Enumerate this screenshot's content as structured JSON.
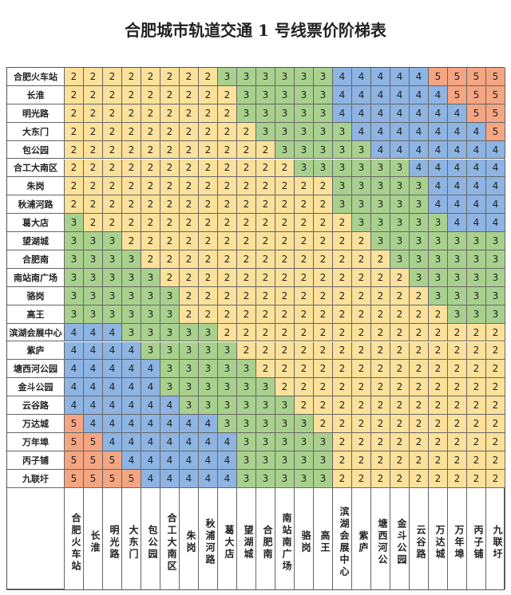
{
  "title": "合肥城市轨道交通 1 号线票价阶梯表",
  "stations": [
    "合肥火车站",
    "长淮",
    "明光路",
    "大东门",
    "包公园",
    "合工大南区",
    "朱岗",
    "秋浦河路",
    "葛大店",
    "望湖城",
    "合肥南",
    "南站南广场",
    "骆岗",
    "高王",
    "滨湖会展中心",
    "紫庐",
    "塘西河公园",
    "金斗公园",
    "云谷路",
    "万达城",
    "万年埠",
    "丙子铺",
    "九联圩"
  ],
  "columns": [
    "合肥火车站",
    "长淮",
    "明光路",
    "大东门",
    "包公园",
    "合工大南区",
    "朱岗",
    "秋浦河路",
    "葛大店",
    "望湖城",
    "合肥南",
    "南站南广场",
    "骆岗",
    "高王",
    "滨湖会展中心",
    "紫庐",
    "塘西河公",
    "金斗公园",
    "云谷路",
    "万达城",
    "万年埠",
    "丙子铺",
    "九联圩"
  ],
  "fare_colors": {
    "2": "#fbe19a",
    "3": "#a9d18e",
    "4": "#8db4e2",
    "5": "#f4a582"
  },
  "fares": [
    [
      2,
      2,
      2,
      2,
      2,
      2,
      2,
      2,
      3,
      3,
      3,
      3,
      3,
      3,
      4,
      4,
      4,
      4,
      4,
      5,
      5,
      5,
      5
    ],
    [
      2,
      2,
      2,
      2,
      2,
      2,
      2,
      2,
      2,
      3,
      3,
      3,
      3,
      3,
      4,
      4,
      4,
      4,
      4,
      4,
      5,
      5,
      5
    ],
    [
      2,
      2,
      2,
      2,
      2,
      2,
      2,
      2,
      2,
      3,
      3,
      3,
      3,
      3,
      4,
      4,
      4,
      4,
      4,
      4,
      4,
      5,
      5
    ],
    [
      2,
      2,
      2,
      2,
      2,
      2,
      2,
      2,
      2,
      2,
      3,
      3,
      3,
      3,
      3,
      4,
      4,
      4,
      4,
      4,
      4,
      4,
      5
    ],
    [
      2,
      2,
      2,
      2,
      2,
      2,
      2,
      2,
      2,
      2,
      2,
      3,
      3,
      3,
      3,
      3,
      4,
      4,
      4,
      4,
      4,
      4,
      4
    ],
    [
      2,
      2,
      2,
      2,
      2,
      2,
      2,
      2,
      2,
      2,
      2,
      2,
      3,
      3,
      3,
      3,
      3,
      3,
      4,
      4,
      4,
      4,
      4
    ],
    [
      2,
      2,
      2,
      2,
      2,
      2,
      2,
      2,
      2,
      2,
      2,
      2,
      2,
      2,
      3,
      3,
      3,
      3,
      3,
      4,
      4,
      4,
      4
    ],
    [
      2,
      2,
      2,
      2,
      2,
      2,
      2,
      2,
      2,
      2,
      2,
      2,
      2,
      2,
      3,
      3,
      3,
      3,
      3,
      4,
      4,
      4,
      4
    ],
    [
      3,
      2,
      2,
      2,
      2,
      2,
      2,
      2,
      2,
      2,
      2,
      2,
      2,
      2,
      2,
      3,
      3,
      3,
      3,
      3,
      4,
      4,
      4
    ],
    [
      3,
      3,
      3,
      2,
      2,
      2,
      2,
      2,
      2,
      2,
      2,
      2,
      2,
      2,
      2,
      2,
      3,
      3,
      3,
      3,
      3,
      3,
      3
    ],
    [
      3,
      3,
      3,
      3,
      2,
      2,
      2,
      2,
      2,
      2,
      2,
      2,
      2,
      2,
      2,
      2,
      2,
      3,
      3,
      3,
      3,
      3,
      3
    ],
    [
      3,
      3,
      3,
      3,
      3,
      2,
      2,
      2,
      2,
      2,
      2,
      2,
      2,
      2,
      2,
      2,
      2,
      2,
      3,
      3,
      3,
      3,
      3
    ],
    [
      3,
      3,
      3,
      3,
      3,
      3,
      2,
      2,
      2,
      2,
      2,
      2,
      2,
      2,
      2,
      2,
      2,
      2,
      2,
      3,
      3,
      3,
      3
    ],
    [
      3,
      3,
      3,
      3,
      3,
      3,
      2,
      2,
      2,
      2,
      2,
      2,
      2,
      2,
      2,
      2,
      2,
      2,
      2,
      2,
      3,
      3,
      3
    ],
    [
      4,
      4,
      4,
      3,
      3,
      3,
      3,
      3,
      2,
      2,
      2,
      2,
      2,
      2,
      2,
      2,
      2,
      2,
      2,
      2,
      2,
      2,
      2
    ],
    [
      4,
      4,
      4,
      4,
      3,
      3,
      3,
      3,
      3,
      2,
      2,
      2,
      2,
      2,
      2,
      2,
      2,
      2,
      2,
      2,
      2,
      2,
      2
    ],
    [
      4,
      4,
      4,
      4,
      4,
      3,
      3,
      3,
      3,
      3,
      2,
      2,
      2,
      2,
      2,
      2,
      2,
      2,
      2,
      2,
      2,
      2,
      2
    ],
    [
      4,
      4,
      4,
      4,
      4,
      3,
      3,
      3,
      3,
      3,
      3,
      2,
      2,
      2,
      2,
      2,
      2,
      2,
      2,
      2,
      2,
      2,
      2
    ],
    [
      4,
      4,
      4,
      4,
      4,
      4,
      3,
      3,
      3,
      3,
      3,
      3,
      2,
      2,
      2,
      2,
      2,
      2,
      2,
      2,
      2,
      2,
      2
    ],
    [
      5,
      4,
      4,
      4,
      4,
      4,
      4,
      4,
      3,
      3,
      3,
      3,
      3,
      2,
      2,
      2,
      2,
      2,
      2,
      2,
      2,
      2,
      2
    ],
    [
      5,
      5,
      4,
      4,
      4,
      4,
      4,
      4,
      4,
      3,
      3,
      3,
      3,
      3,
      2,
      2,
      2,
      2,
      2,
      2,
      2,
      2,
      2
    ],
    [
      5,
      5,
      5,
      4,
      4,
      4,
      4,
      4,
      4,
      3,
      3,
      3,
      3,
      3,
      2,
      2,
      2,
      2,
      2,
      2,
      2,
      2,
      2
    ],
    [
      5,
      5,
      5,
      5,
      4,
      4,
      4,
      4,
      4,
      3,
      3,
      3,
      3,
      3,
      2,
      2,
      2,
      2,
      2,
      2,
      2,
      2,
      2
    ]
  ]
}
